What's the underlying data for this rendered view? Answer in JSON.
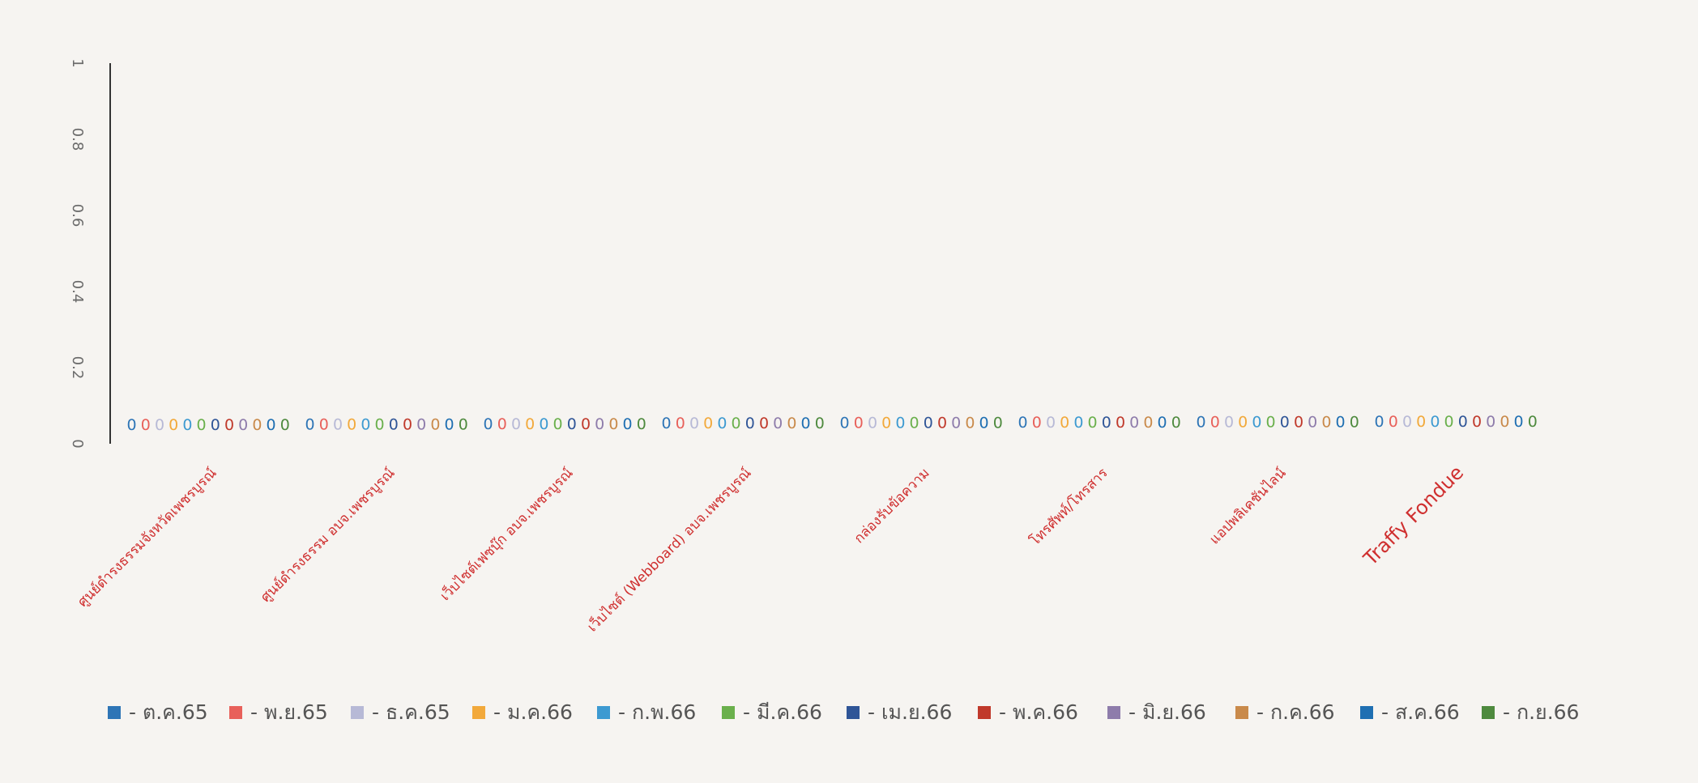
{
  "chart_data": {
    "type": "bar",
    "ylim": [
      0,
      1
    ],
    "yticks": [
      "0",
      "0.2",
      "0.4",
      "0.6",
      "0.8",
      "1"
    ],
    "grid": false,
    "legend_position": "bottom",
    "categories": [
      "ศูนย์ดำรงธรรมจังหวัดเพชรบูรณ์",
      "ศูนย์ดำรงธรรม อบจ.เพชรบูรณ์",
      "เว็บไซต์เฟซบุ๊ก อบจ.เพชรบูรณ์",
      "เว็บไซต์ (Webboard) อบจ.เพชรบูรณ์",
      "กล่องรับข้อความ",
      "โทรศัพท์/โทรสาร",
      "แอปพลิเคชันไลน์",
      "Traffy Fondue"
    ],
    "series": [
      {
        "name": "ต.ค.65",
        "color": "#2e75b6",
        "values": [
          0,
          0,
          0,
          0,
          0,
          0,
          0,
          0
        ]
      },
      {
        "name": "พ.ย.65",
        "color": "#e8605a",
        "values": [
          0,
          0,
          0,
          0,
          0,
          0,
          0,
          0
        ]
      },
      {
        "name": "ธ.ค.65",
        "color": "#b7b9d6",
        "values": [
          0,
          0,
          0,
          0,
          0,
          0,
          0,
          0
        ]
      },
      {
        "name": "ม.ค.66",
        "color": "#f2a93b",
        "values": [
          0,
          0,
          0,
          0,
          0,
          0,
          0,
          0
        ]
      },
      {
        "name": "ก.พ.66",
        "color": "#3d9ad1",
        "values": [
          0,
          0,
          0,
          0,
          0,
          0,
          0,
          0
        ]
      },
      {
        "name": "มี.ค.66",
        "color": "#6ab04c",
        "values": [
          0,
          0,
          0,
          0,
          0,
          0,
          0,
          0
        ]
      },
      {
        "name": "เม.ย.66",
        "color": "#2f5597",
        "values": [
          0,
          0,
          0,
          0,
          0,
          0,
          0,
          0
        ]
      },
      {
        "name": "พ.ค.66",
        "color": "#c0392b",
        "values": [
          0,
          0,
          0,
          0,
          0,
          0,
          0,
          0
        ]
      },
      {
        "name": "มิ.ย.66",
        "color": "#8e7cab",
        "values": [
          0,
          0,
          0,
          0,
          0,
          0,
          0,
          0
        ]
      },
      {
        "name": "ก.ค.66",
        "color": "#c98a4b",
        "values": [
          0,
          0,
          0,
          0,
          0,
          0,
          0,
          0
        ]
      },
      {
        "name": "ส.ค.66",
        "color": "#1f6fb2",
        "values": [
          0,
          0,
          0,
          0,
          0,
          0,
          0,
          0
        ]
      },
      {
        "name": "ก.ย.66",
        "color": "#4e8a3e",
        "values": [
          0,
          0,
          0,
          0,
          0,
          0,
          0,
          0
        ]
      }
    ]
  }
}
